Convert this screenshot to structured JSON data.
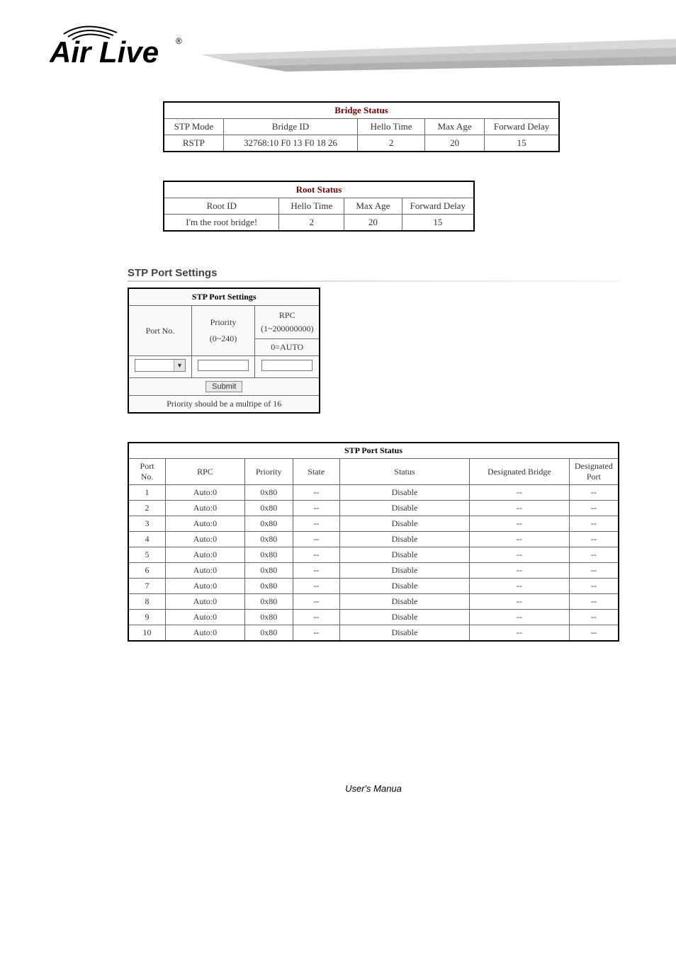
{
  "logo": {
    "text": "Air Live",
    "reg": "®"
  },
  "bridge_status": {
    "title": "Bridge Status",
    "headers": [
      "STP Mode",
      "Bridge ID",
      "Hello Time",
      "Max Age",
      "Forward Delay"
    ],
    "row": [
      "RSTP",
      "32768:10 F0 13 F0 18 26",
      "2",
      "20",
      "15"
    ],
    "title_color": "#7a0000",
    "col_widths": [
      "80px",
      "180px",
      "90px",
      "80px",
      "100px"
    ]
  },
  "root_status": {
    "title": "Root Status",
    "headers": [
      "Root ID",
      "Hello Time",
      "Max Age",
      "Forward Delay"
    ],
    "row": [
      "I'm the root bridge!",
      "2",
      "20",
      "15"
    ],
    "title_color": "#7a0000",
    "col_widths": [
      "160px",
      "90px",
      "80px",
      "100px"
    ]
  },
  "port_settings": {
    "section_title": "STP Port Settings",
    "table_title": "STP Port Settings",
    "col1": "Port No.",
    "col2_top": "Priority",
    "col2_bottom": "(0~240)",
    "col3_top": "RPC",
    "col3_mid": "(1~200000000)",
    "col3_bottom": "0=AUTO",
    "submit": "Submit",
    "note": "Priority should be a multipe of 16"
  },
  "port_status": {
    "title": "STP Port Status",
    "headers": [
      "Port No.",
      "RPC",
      "Priority",
      "State",
      "Status",
      "Designated Bridge",
      "Designated Port"
    ],
    "col_widths": [
      "55px",
      "120px",
      "70px",
      "70px",
      "200px",
      "150px",
      "70px"
    ],
    "rows": [
      [
        "1",
        "Auto:0",
        "0x80",
        "--",
        "Disable",
        "--",
        "--"
      ],
      [
        "2",
        "Auto:0",
        "0x80",
        "--",
        "Disable",
        "--",
        "--"
      ],
      [
        "3",
        "Auto:0",
        "0x80",
        "--",
        "Disable",
        "--",
        "--"
      ],
      [
        "4",
        "Auto:0",
        "0x80",
        "--",
        "Disable",
        "--",
        "--"
      ],
      [
        "5",
        "Auto:0",
        "0x80",
        "--",
        "Disable",
        "--",
        "--"
      ],
      [
        "6",
        "Auto:0",
        "0x80",
        "--",
        "Disable",
        "--",
        "--"
      ],
      [
        "7",
        "Auto:0",
        "0x80",
        "--",
        "Disable",
        "--",
        "--"
      ],
      [
        "8",
        "Auto:0",
        "0x80",
        "--",
        "Disable",
        "--",
        "--"
      ],
      [
        "9",
        "Auto:0",
        "0x80",
        "--",
        "Disable",
        "--",
        "--"
      ],
      [
        "10",
        "Auto:0",
        "0x80",
        "--",
        "Disable",
        "--",
        "--"
      ]
    ]
  },
  "footer": "User's Manua"
}
